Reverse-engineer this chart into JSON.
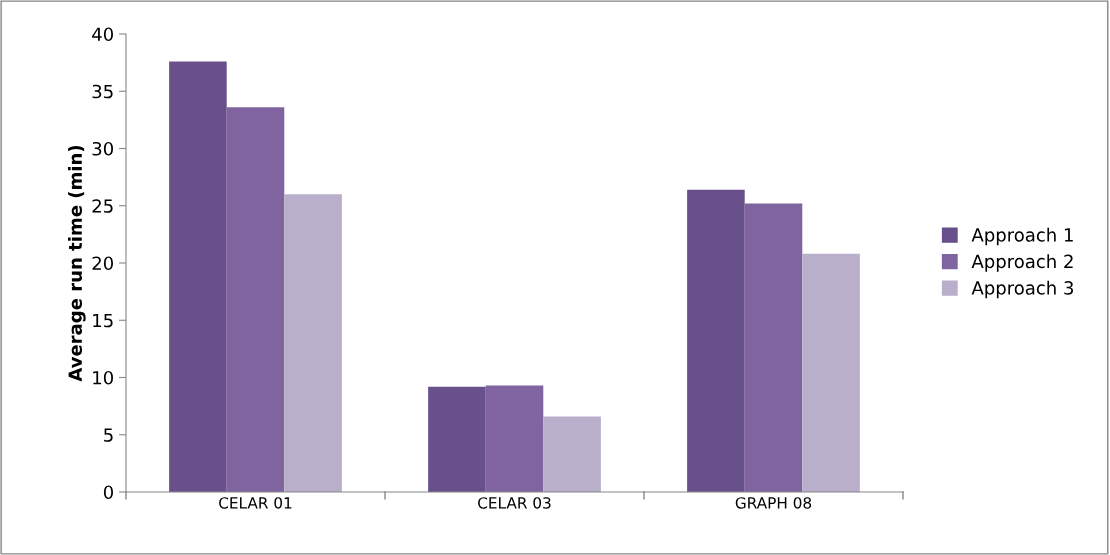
{
  "chart_data": {
    "type": "bar",
    "ylabel": "Average run time (min)",
    "categories": [
      "CELAR 01",
      "CELAR 03",
      "GRAPH 08"
    ],
    "series": [
      {
        "name": "Approach 1",
        "color": "#68508a",
        "values": [
          37.6,
          9.2,
          26.4
        ]
      },
      {
        "name": "Approach 2",
        "color": "#7f649f",
        "values": [
          33.6,
          9.3,
          25.2
        ]
      },
      {
        "name": "Approach 3",
        "color": "#b9afcb",
        "values": [
          26.0,
          6.6,
          20.8
        ]
      }
    ],
    "ylim": [
      0,
      40
    ],
    "yticks": [
      0,
      5,
      10,
      15,
      20,
      25,
      30,
      35,
      40
    ],
    "grid": false,
    "legend": "right"
  }
}
